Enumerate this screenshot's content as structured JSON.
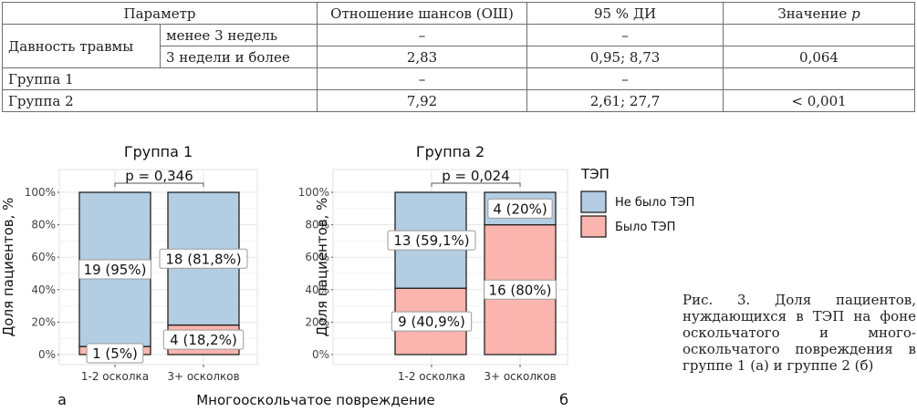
{
  "table": {
    "headers": [
      "Параметр",
      "Отношение шансов (ОШ)",
      "95 % ДИ",
      "Значение p"
    ],
    "header_p_prefix": "Значение ",
    "header_p_italic": "p",
    "rows": [
      {
        "group": "Давность травмы",
        "sub": "менее 3 недель",
        "or": "–",
        "ci": "–",
        "p": ""
      },
      {
        "group": "",
        "sub": "3 недели и более",
        "or": "2,83",
        "ci": "0,95; 8,73",
        "p": "0,064"
      },
      {
        "group": "Группа 1",
        "sub": "",
        "or": "–",
        "ci": "–",
        "p": ""
      },
      {
        "group": "Группа 2",
        "sub": "",
        "or": "7,92",
        "ci": "2,61; 27,7",
        "p": "< 0,001"
      }
    ]
  },
  "chart_data": [
    {
      "type": "bar",
      "stacked": true,
      "title": "Группа 1",
      "ylabel": "Доля пациентов, %",
      "categories": [
        "1-2 осколка",
        "3+ осколков"
      ],
      "yticks": [
        "0%",
        "20%",
        "40%",
        "60%",
        "80%",
        "100%"
      ],
      "ylim": [
        0,
        100
      ],
      "series": [
        {
          "name": "Было ТЭП",
          "values": [
            5,
            18.2
          ],
          "labels": [
            "1 (5%)",
            "4 (18,2%)"
          ]
        },
        {
          "name": "Не было ТЭП",
          "values": [
            95,
            81.8
          ],
          "labels": [
            "19 (95%)",
            "18 (81,8%)"
          ]
        }
      ],
      "pvalue": "p = 0,346",
      "panel_letter": "а",
      "grid": true
    },
    {
      "type": "bar",
      "stacked": true,
      "title": "Группа 2",
      "ylabel": "Доля пациентов, %",
      "categories": [
        "1-2 осколка",
        "3+ осколков"
      ],
      "yticks": [
        "0%",
        "20%",
        "40%",
        "60%",
        "80%",
        "100%"
      ],
      "ylim": [
        0,
        100
      ],
      "series": [
        {
          "name": "Было ТЭП",
          "values": [
            40.9,
            80
          ],
          "labels": [
            "9 (40,9%)",
            "16 (80%)"
          ]
        },
        {
          "name": "Не было ТЭП",
          "values": [
            59.1,
            20
          ],
          "labels": [
            "13 (59,1%)",
            "4 (20%)"
          ]
        }
      ],
      "pvalue": "p = 0,024",
      "panel_letter": "б",
      "grid": true
    }
  ],
  "shared_xlabel": "Многооскольчатое повреждение",
  "legend": {
    "title": "ТЭП",
    "items": [
      {
        "label": "Не было ТЭП",
        "color": "#b3cde3"
      },
      {
        "label": "Было ТЭП",
        "color": "#fbb4ae"
      }
    ],
    "placement": "right"
  },
  "colors": {
    "no_tep": "#b3cde3",
    "tep": "#fbb4ae",
    "grid": "#e6e6e6"
  },
  "caption": "Рис. 3. Доля пациентов, нуждающихся в ТЭП на фоне оскольчатого и много­оскольчатого повреждения в группе 1 (а) и группе 2 (б)"
}
